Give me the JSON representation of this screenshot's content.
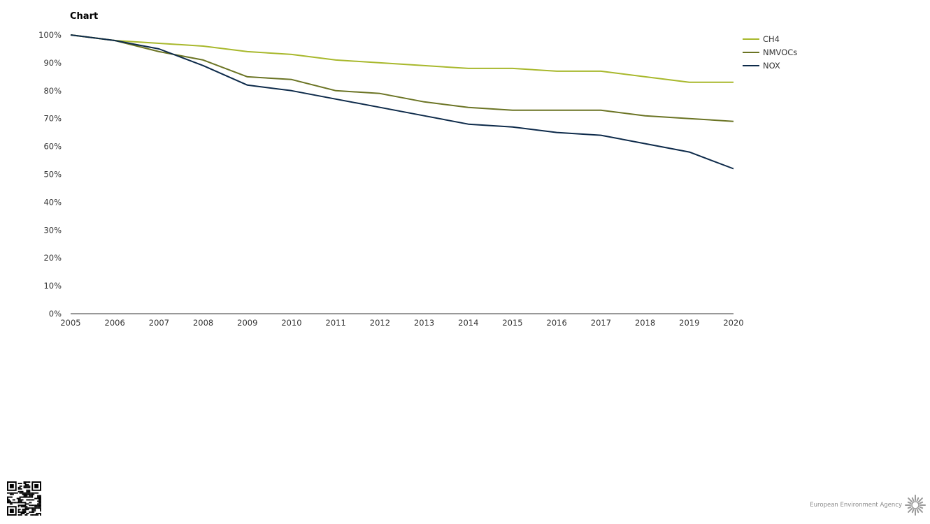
{
  "page": {
    "title": "Chart"
  },
  "chart_data": {
    "type": "line",
    "x": [
      2005,
      2006,
      2007,
      2008,
      2009,
      2010,
      2011,
      2012,
      2013,
      2014,
      2015,
      2016,
      2017,
      2018,
      2019,
      2020
    ],
    "series": [
      {
        "name": "CH4",
        "color": "#a8b82c",
        "values": [
          100,
          98,
          97,
          96,
          94,
          93,
          91,
          90,
          89,
          88,
          88,
          87,
          87,
          85,
          83,
          83
        ]
      },
      {
        "name": "NMVOCs",
        "color": "#6b7424",
        "values": [
          100,
          98,
          94,
          91,
          85,
          84,
          80,
          79,
          76,
          74,
          73,
          73,
          73,
          71,
          70,
          69
        ]
      },
      {
        "name": "NOX",
        "color": "#0d2a4a",
        "values": [
          100,
          98,
          95,
          89,
          82,
          80,
          77,
          74,
          71,
          68,
          67,
          65,
          64,
          61,
          58,
          52
        ]
      }
    ],
    "y_ticks": [
      "0%",
      "10%",
      "20%",
      "30%",
      "40%",
      "50%",
      "60%",
      "70%",
      "80%",
      "90%",
      "100%"
    ],
    "ylim": [
      0,
      100
    ],
    "grid": false,
    "legend_position": "right"
  },
  "footer": {
    "agency": "European Environment Agency",
    "qr_icon": "qr-code-icon",
    "logo_icon": "eea-logo-icon"
  }
}
